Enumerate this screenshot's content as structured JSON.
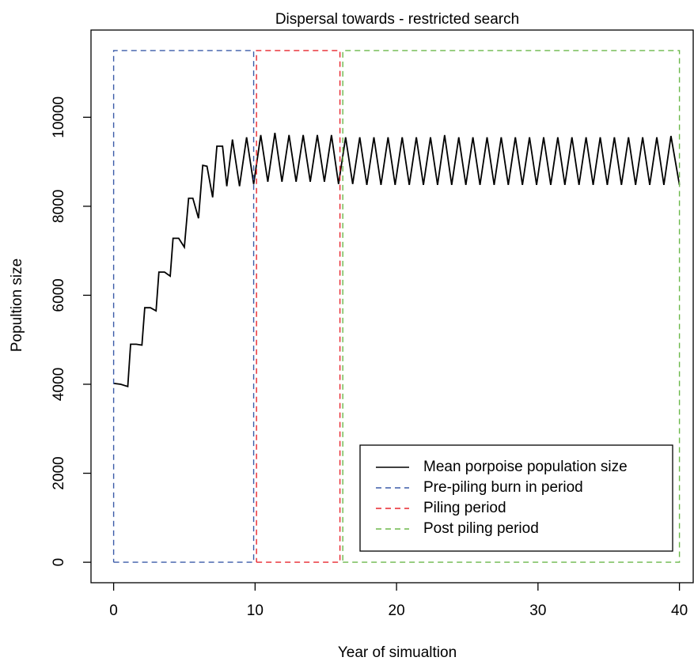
{
  "chart_data": {
    "type": "line",
    "title": "Dispersal towards - restricted search",
    "x_label": "Year of simualtion",
    "y_label": "Popultion size",
    "xlim": [
      -1.6,
      41.6
    ],
    "ylim": [
      -460,
      11960
    ],
    "xticks": [
      0,
      10,
      20,
      30,
      40
    ],
    "yticks": [
      0,
      2000,
      4000,
      6000,
      8000,
      10000
    ],
    "legend_position": "bottom-right",
    "series": [
      {
        "name": "Mean porpoise population size",
        "color": "#000000",
        "linestyle": "solid",
        "x": [
          0,
          0.5,
          1,
          1.2,
          1.6,
          2,
          2.2,
          2.6,
          3,
          3.2,
          3.6,
          4,
          4.2,
          4.6,
          5,
          5.3,
          5.6,
          6,
          6.3,
          6.6,
          7,
          7.3,
          7.7,
          8,
          8.4,
          8.9,
          9.4,
          9.9,
          10.4,
          10.9,
          11.4,
          11.9,
          12.4,
          12.9,
          13.4,
          13.9,
          14.4,
          14.9,
          15.4,
          15.9,
          16.4,
          16.9,
          17.4,
          17.9,
          18.4,
          18.9,
          19.4,
          19.9,
          20.4,
          20.9,
          21.4,
          21.9,
          22.4,
          22.9,
          23.4,
          23.9,
          24.4,
          24.9,
          25.4,
          25.9,
          26.4,
          26.9,
          27.4,
          27.9,
          28.4,
          28.9,
          29.4,
          29.9,
          30.4,
          30.9,
          31.4,
          31.9,
          32.4,
          32.9,
          33.4,
          33.9,
          34.4,
          34.9,
          35.4,
          35.9,
          36.4,
          36.9,
          37.4,
          37.9,
          38.4,
          38.9,
          39.4,
          40
        ],
        "values": [
          4020,
          4000,
          3950,
          4900,
          4900,
          4880,
          5720,
          5720,
          5650,
          6520,
          6520,
          6430,
          7280,
          7280,
          7080,
          8180,
          8180,
          7730,
          8920,
          8900,
          8200,
          9350,
          9350,
          8450,
          9500,
          8450,
          9550,
          8500,
          9600,
          8550,
          9650,
          8550,
          9600,
          8550,
          9600,
          8550,
          9600,
          8550,
          9600,
          8500,
          9550,
          8500,
          9550,
          8480,
          9550,
          8480,
          9550,
          8480,
          9550,
          8480,
          9550,
          8480,
          9550,
          8480,
          9600,
          8480,
          9550,
          8480,
          9550,
          8480,
          9550,
          8480,
          9550,
          8480,
          9550,
          8480,
          9550,
          8480,
          9550,
          8480,
          9550,
          8480,
          9550,
          8480,
          9550,
          8480,
          9550,
          8480,
          9550,
          8480,
          9550,
          8480,
          9550,
          8480,
          9550,
          8480,
          9580,
          8480
        ]
      },
      {
        "name": "Pre-piling burn in period",
        "color": "#3b5ba8",
        "linestyle": "dashed",
        "x": [
          0,
          9.9,
          9.9,
          0,
          0
        ],
        "values": [
          0,
          0,
          11500,
          11500,
          0
        ]
      },
      {
        "name": "Piling period",
        "color": "#e8262d",
        "linestyle": "dashed",
        "x": [
          10.1,
          16,
          16,
          10.1,
          10.1
        ],
        "values": [
          0,
          0,
          11500,
          11500,
          0
        ]
      },
      {
        "name": "Post piling period",
        "color": "#6bb84a",
        "linestyle": "dashed",
        "x": [
          16.2,
          40,
          40,
          16.2,
          16.2
        ],
        "values": [
          0,
          0,
          11500,
          11500,
          0
        ]
      }
    ]
  }
}
